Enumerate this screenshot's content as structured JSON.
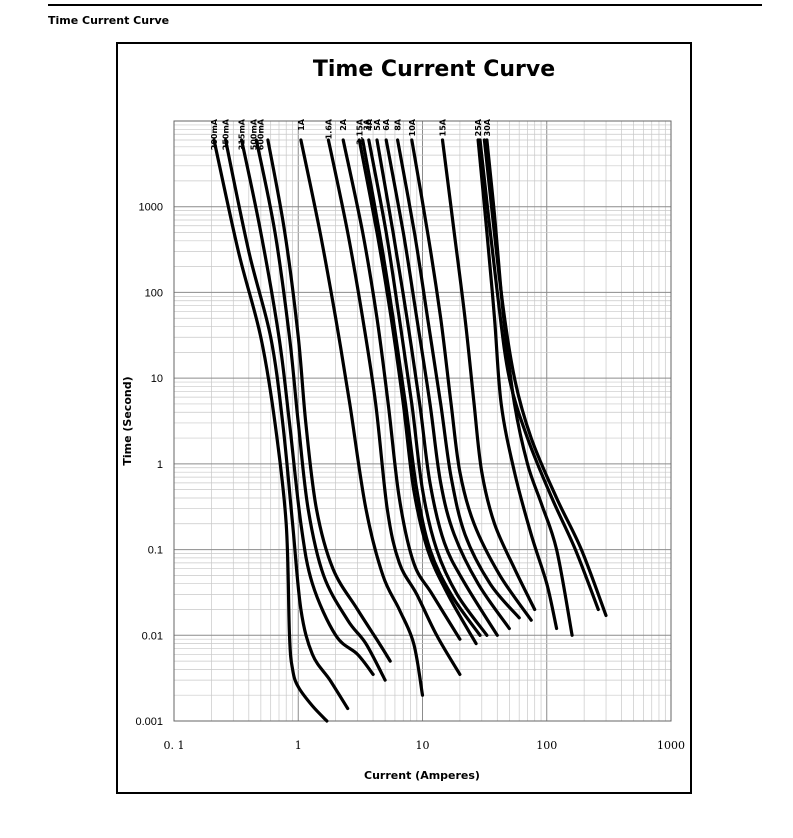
{
  "section_title": "Time Current Curve",
  "chart_data": {
    "type": "line",
    "title": "Time Current Curve",
    "xlabel": "Current (Amperes)",
    "ylabel": "Time (Second)",
    "x_scale": "log",
    "y_scale": "log",
    "xlim": [
      0.1,
      1000
    ],
    "ylim": [
      0.001,
      10000
    ],
    "x_ticks": [
      "0. 1",
      "1",
      "10",
      "100",
      "1000"
    ],
    "y_ticks": [
      "0.001",
      "0.01",
      "0.1",
      "1",
      "10",
      "100",
      "1000"
    ],
    "grid": true,
    "series": [
      {
        "name": "200mA",
        "points": [
          [
            0.21,
            6000
          ],
          [
            0.33,
            300
          ],
          [
            0.5,
            30
          ],
          [
            0.65,
            3
          ],
          [
            0.8,
            0.2
          ],
          [
            0.85,
            0.01
          ],
          [
            0.9,
            0.004
          ],
          [
            1.0,
            0.0025
          ],
          [
            1.3,
            0.0015
          ],
          [
            1.7,
            0.001
          ]
        ]
      },
      {
        "name": "250mA",
        "points": [
          [
            0.26,
            6000
          ],
          [
            0.4,
            300
          ],
          [
            0.6,
            30
          ],
          [
            0.75,
            3
          ],
          [
            0.9,
            0.2
          ],
          [
            1.05,
            0.02
          ],
          [
            1.3,
            0.006
          ],
          [
            1.8,
            0.003
          ],
          [
            2.5,
            0.0014
          ]
        ]
      },
      {
        "name": "315mA",
        "points": [
          [
            0.35,
            6000
          ],
          [
            0.5,
            500
          ],
          [
            0.7,
            30
          ],
          [
            0.85,
            3
          ],
          [
            1.05,
            0.2
          ],
          [
            1.3,
            0.04
          ],
          [
            2.0,
            0.01
          ],
          [
            3.0,
            0.006
          ],
          [
            4.0,
            0.0035
          ]
        ]
      },
      {
        "name": "500mA",
        "points": [
          [
            0.46,
            6000
          ],
          [
            0.65,
            500
          ],
          [
            0.85,
            30
          ],
          [
            1.0,
            3
          ],
          [
            1.2,
            0.3
          ],
          [
            1.6,
            0.05
          ],
          [
            2.5,
            0.015
          ],
          [
            3.5,
            0.008
          ],
          [
            5.0,
            0.003
          ]
        ]
      },
      {
        "name": "600mA",
        "points": [
          [
            0.57,
            6000
          ],
          [
            0.78,
            500
          ],
          [
            1.0,
            30
          ],
          [
            1.15,
            3
          ],
          [
            1.4,
            0.3
          ],
          [
            1.9,
            0.06
          ],
          [
            3.0,
            0.02
          ],
          [
            4.5,
            0.008
          ],
          [
            5.5,
            0.005
          ]
        ]
      },
      {
        "name": "1A",
        "points": [
          [
            1.05,
            6000
          ],
          [
            1.5,
            500
          ],
          [
            2.0,
            50
          ],
          [
            2.6,
            5
          ],
          [
            3.5,
            0.3
          ],
          [
            4.8,
            0.05
          ],
          [
            6.5,
            0.02
          ],
          [
            8.5,
            0.008
          ],
          [
            10,
            0.002
          ]
        ]
      },
      {
        "name": "1.6A",
        "points": [
          [
            1.75,
            6000
          ],
          [
            2.5,
            500
          ],
          [
            3.3,
            50
          ],
          [
            4.2,
            5
          ],
          [
            5.2,
            0.3
          ],
          [
            6.5,
            0.07
          ],
          [
            9,
            0.03
          ],
          [
            13,
            0.01
          ],
          [
            20,
            0.0035
          ]
        ]
      },
      {
        "name": "2A",
        "points": [
          [
            2.3,
            6000
          ],
          [
            3.3,
            500
          ],
          [
            4.3,
            50
          ],
          [
            5.3,
            5
          ],
          [
            6.5,
            0.4
          ],
          [
            8.5,
            0.07
          ],
          [
            12,
            0.03
          ],
          [
            20,
            0.009
          ]
        ]
      },
      {
        "name": "3A",
        "points": [
          [
            3.1,
            6000
          ],
          [
            4.3,
            500
          ],
          [
            5.6,
            50
          ],
          [
            7,
            5
          ],
          [
            8.5,
            0.5
          ],
          [
            11,
            0.1
          ],
          [
            16,
            0.03
          ],
          [
            27,
            0.008
          ]
        ]
      },
      {
        "name": "3.15A",
        "points": [
          [
            3.3,
            6000
          ],
          [
            4.5,
            500
          ],
          [
            5.8,
            50
          ],
          [
            7.3,
            5
          ],
          [
            9,
            0.5
          ],
          [
            11.5,
            0.1
          ],
          [
            17,
            0.03
          ],
          [
            29,
            0.01
          ]
        ]
      },
      {
        "name": "4A",
        "points": [
          [
            3.7,
            6000
          ],
          [
            5.1,
            500
          ],
          [
            6.5,
            50
          ],
          [
            8.2,
            5
          ],
          [
            10,
            0.5
          ],
          [
            13,
            0.1
          ],
          [
            19,
            0.03
          ],
          [
            33,
            0.01
          ]
        ]
      },
      {
        "name": "5A",
        "points": [
          [
            4.3,
            6000
          ],
          [
            5.8,
            500
          ],
          [
            7.5,
            50
          ],
          [
            9.5,
            5
          ],
          [
            11.5,
            0.6
          ],
          [
            15,
            0.12
          ],
          [
            22,
            0.04
          ],
          [
            40,
            0.01
          ]
        ]
      },
      {
        "name": "6A",
        "points": [
          [
            5.1,
            6000
          ],
          [
            7.0,
            500
          ],
          [
            9.0,
            50
          ],
          [
            11.5,
            5
          ],
          [
            14,
            0.6
          ],
          [
            18,
            0.15
          ],
          [
            28,
            0.04
          ],
          [
            50,
            0.012
          ]
        ]
      },
      {
        "name": "8A",
        "points": [
          [
            6.3,
            6000
          ],
          [
            8.6,
            500
          ],
          [
            11,
            50
          ],
          [
            14,
            5
          ],
          [
            17,
            0.7
          ],
          [
            22,
            0.15
          ],
          [
            35,
            0.04
          ],
          [
            60,
            0.016
          ]
        ]
      },
      {
        "name": "10A",
        "points": [
          [
            8.2,
            6000
          ],
          [
            11,
            500
          ],
          [
            14,
            50
          ],
          [
            17,
            5
          ],
          [
            20,
            0.8
          ],
          [
            26,
            0.2
          ],
          [
            42,
            0.05
          ],
          [
            75,
            0.015
          ]
        ]
      },
      {
        "name": "15A",
        "points": [
          [
            14.5,
            6000
          ],
          [
            18,
            500
          ],
          [
            22,
            50
          ],
          [
            26,
            5
          ],
          [
            30,
            0.8
          ],
          [
            38,
            0.2
          ],
          [
            55,
            0.06
          ],
          [
            80,
            0.02
          ]
        ]
      },
      {
        "name": "25A",
        "points": [
          [
            28,
            6000
          ],
          [
            33,
            500
          ],
          [
            38,
            50
          ],
          [
            43,
            5
          ],
          [
            55,
            0.8
          ],
          [
            75,
            0.15
          ],
          [
            100,
            0.04
          ],
          [
            120,
            0.012
          ]
        ]
      },
      {
        "name": "30A",
        "points": [
          [
            33,
            6000
          ],
          [
            38,
            800
          ],
          [
            45,
            50
          ],
          [
            55,
            5
          ],
          [
            70,
            1
          ],
          [
            90,
            0.35
          ],
          [
            120,
            0.1
          ],
          [
            160,
            0.01
          ]
        ]
      },
      {
        "name": "",
        "points": [
          [
            29,
            6000
          ],
          [
            40,
            100
          ],
          [
            50,
            10
          ],
          [
            70,
            2
          ],
          [
            110,
            0.4
          ],
          [
            170,
            0.1
          ],
          [
            260,
            0.02
          ]
        ]
      },
      {
        "name": "",
        "points": [
          [
            31.5,
            6000
          ],
          [
            43,
            100
          ],
          [
            55,
            10
          ],
          [
            75,
            2
          ],
          [
            120,
            0.4
          ],
          [
            190,
            0.1
          ],
          [
            300,
            0.017
          ]
        ]
      }
    ],
    "series_label_rows": [
      [
        "200mA"
      ],
      [
        "250mA"
      ],
      [
        "315mA"
      ],
      [
        "500mA",
        "600mA"
      ],
      [
        "1A"
      ],
      [
        "1.6A"
      ],
      [
        "2A"
      ],
      [
        "3.15A",
        "3A"
      ],
      [
        "4A"
      ],
      [
        "5A"
      ],
      [
        "6A"
      ],
      [
        "8A"
      ],
      [
        "10A"
      ],
      [
        "15A"
      ],
      [
        "25A"
      ],
      [
        "30A"
      ]
    ],
    "colors": {
      "line": "#000000",
      "grid_major": "#8c8c8c",
      "grid_minor": "#c8c8c8"
    }
  }
}
